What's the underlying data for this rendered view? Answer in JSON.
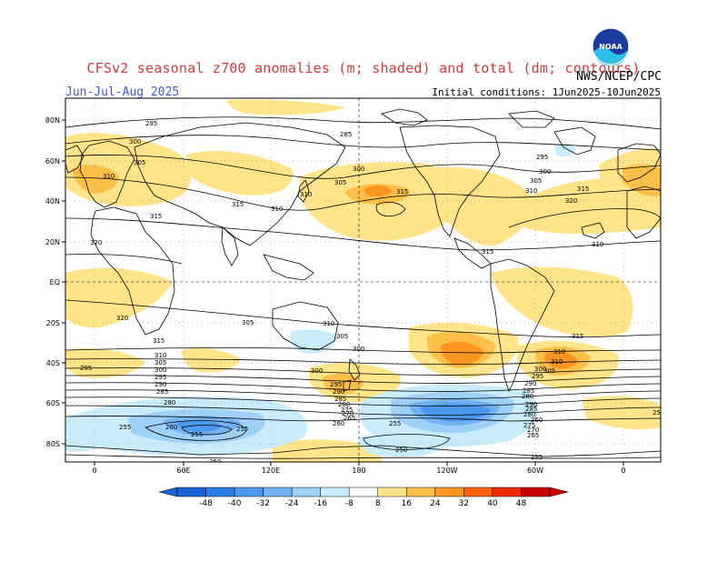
{
  "header": {
    "title": "CFSv2 seasonal z700 anomalies (m; shaded) and total (dm; contours)",
    "season": "Jun-Jul-Aug 2025",
    "initial_conditions": "Initial conditions: 1Jun2025-10Jun2025",
    "agency": "NWS/NCEP/CPC",
    "logo_text": "NOAA"
  },
  "map": {
    "lat_labels": [
      "80N",
      "60N",
      "40N",
      "20N",
      "EQ",
      "20S",
      "40S",
      "60S",
      "80S"
    ],
    "lon_labels": [
      "0",
      "60E",
      "120E",
      "180",
      "120W",
      "60W",
      "0"
    ],
    "contour_labels": [
      "285",
      "295",
      "300",
      "305",
      "310",
      "315",
      "320",
      "315",
      "310",
      "300",
      "305",
      "315",
      "310",
      "305",
      "310",
      "315",
      "320",
      "315",
      "300",
      "305",
      "310",
      "295",
      "300",
      "305",
      "310",
      "315",
      "320",
      "295",
      "310",
      "305",
      "300",
      "295",
      "290",
      "285",
      "280",
      "300",
      "295",
      "290",
      "285",
      "280",
      "275",
      "270",
      "265",
      "260",
      "255",
      "250",
      "255",
      "310",
      "315",
      "295",
      "290",
      "285",
      "280",
      "310",
      "305",
      "300",
      "290",
      "285",
      "280",
      "275",
      "270",
      "265",
      "260",
      "255",
      "260",
      "255",
      "250",
      "255",
      "255"
    ]
  },
  "colorbar": {
    "ticks": [
      "-48",
      "-40",
      "-32",
      "-24",
      "-16",
      "-8",
      "8",
      "16",
      "24",
      "32",
      "40",
      "48"
    ],
    "colors": [
      "#1862d6",
      "#2a7ee6",
      "#4b98ef",
      "#72b2f3",
      "#9fd0f7",
      "#c9ecfb",
      "#ffffff",
      "#ffe48a",
      "#ffc04a",
      "#ff9420",
      "#ff6010",
      "#ee2a00",
      "#c80000"
    ]
  }
}
